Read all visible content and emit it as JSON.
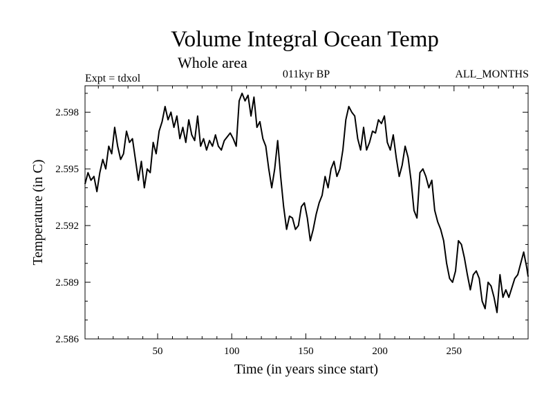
{
  "chart_data": {
    "type": "line",
    "title": "Volume Integral Ocean Temp",
    "subtitle": "Whole area",
    "header_left": "Expt = tdxol",
    "header_center": "011kyr BP",
    "header_right": "ALL_MONTHS",
    "xlabel": "Time (in years since start)",
    "ylabel": "Temperature (in C)",
    "xlim": [
      1,
      300
    ],
    "ylim": [
      2.586,
      2.5994
    ],
    "x_ticks": [
      50,
      100,
      150,
      200,
      250
    ],
    "y_ticks": [
      2.586,
      2.589,
      2.592,
      2.595,
      2.598
    ],
    "y_tick_labels": [
      "2.586",
      "2.589",
      "2.592",
      "2.595",
      "2.598"
    ],
    "grid": false,
    "series": [
      {
        "color": "#000000",
        "x": [
          1,
          3,
          5,
          7,
          9,
          11,
          13,
          15,
          17,
          19,
          21,
          23,
          25,
          27,
          29,
          31,
          33,
          35,
          37,
          39,
          41,
          43,
          45,
          47,
          49,
          51,
          53,
          55,
          57,
          59,
          61,
          63,
          65,
          67,
          69,
          71,
          73,
          75,
          77,
          79,
          81,
          83,
          85,
          87,
          89,
          91,
          93,
          95,
          97,
          99,
          101,
          103,
          105,
          107,
          109,
          111,
          113,
          115,
          117,
          119,
          121,
          123,
          125,
          127,
          129,
          131,
          133,
          135,
          137,
          139,
          141,
          143,
          145,
          147,
          149,
          151,
          153,
          155,
          157,
          159,
          161,
          163,
          165,
          167,
          169,
          171,
          173,
          175,
          177,
          179,
          181,
          183,
          185,
          187,
          189,
          191,
          193,
          195,
          197,
          199,
          201,
          203,
          205,
          207,
          209,
          211,
          213,
          215,
          217,
          219,
          221,
          223,
          225,
          227,
          229,
          231,
          233,
          235,
          237,
          239,
          241,
          243,
          245,
          247,
          249,
          251,
          253,
          255,
          257,
          259,
          261,
          263,
          265,
          267,
          269,
          271,
          273,
          275,
          277,
          279,
          281,
          283,
          285,
          287,
          289,
          291,
          293,
          295,
          297,
          299,
          300
        ],
        "values": [
          2.5942,
          2.5948,
          2.5944,
          2.5946,
          2.5938,
          2.5948,
          2.5955,
          2.595,
          2.5962,
          2.5958,
          2.5972,
          2.5962,
          2.5955,
          2.5958,
          2.597,
          2.5964,
          2.5966,
          2.5955,
          2.5944,
          2.5954,
          2.594,
          2.595,
          2.5948,
          2.5964,
          2.5958,
          2.597,
          2.5975,
          2.5983,
          2.5976,
          2.598,
          2.5972,
          2.5978,
          2.5966,
          2.5972,
          2.5964,
          2.5976,
          2.5968,
          2.5965,
          2.5978,
          2.5962,
          2.5966,
          2.596,
          2.5965,
          2.5962,
          2.5968,
          2.5962,
          2.596,
          2.5965,
          2.5967,
          2.5969,
          2.5966,
          2.5962,
          2.5986,
          2.599,
          2.5986,
          2.5989,
          2.5978,
          2.5988,
          2.5972,
          2.5975,
          2.5966,
          2.5962,
          2.595,
          2.594,
          2.595,
          2.5965,
          2.5946,
          2.593,
          2.5918,
          2.5925,
          2.5924,
          2.5918,
          2.592,
          2.593,
          2.5932,
          2.5924,
          2.5912,
          2.5918,
          2.5926,
          2.5932,
          2.5936,
          2.5946,
          2.594,
          2.595,
          2.5954,
          2.5946,
          2.595,
          2.596,
          2.5976,
          2.5983,
          2.598,
          2.5978,
          2.5966,
          2.596,
          2.5972,
          2.596,
          2.5964,
          2.597,
          2.5969,
          2.5976,
          2.5974,
          2.5978,
          2.5964,
          2.596,
          2.5968,
          2.5956,
          2.5946,
          2.5952,
          2.5962,
          2.5956,
          2.5944,
          2.5928,
          2.5924,
          2.5948,
          2.595,
          2.5946,
          2.594,
          2.5944,
          2.5928,
          2.5922,
          2.5918,
          2.5912,
          2.59,
          2.5892,
          2.589,
          2.5896,
          2.5912,
          2.591,
          2.5903,
          2.5894,
          2.5886,
          2.5894,
          2.5896,
          2.5892,
          2.588,
          2.5876,
          2.589,
          2.5888,
          2.5882,
          2.5874,
          2.5894,
          2.5882,
          2.5886,
          2.5882,
          2.5887,
          2.5892,
          2.5894,
          2.59,
          2.5906,
          2.5898,
          2.5893
        ]
      }
    ]
  }
}
